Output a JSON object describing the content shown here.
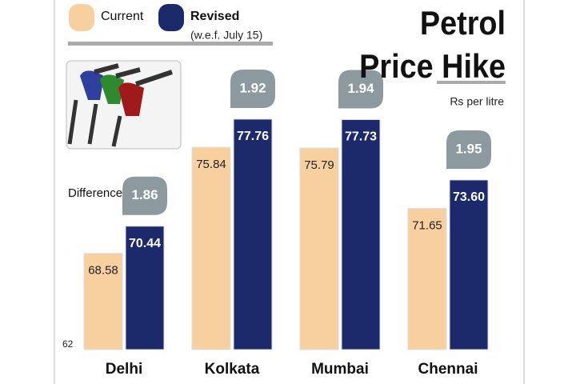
{
  "chart_data": {
    "type": "bar",
    "title": "Petrol Price Hike",
    "unit_label": "Rs per litre",
    "legend_note": "(w.e.f. July 15)",
    "categories": [
      "Delhi",
      "Kolkata",
      "Mumbai",
      "Chennai"
    ],
    "series": [
      {
        "name": "Current",
        "color": "#f8cf9f",
        "values": [
          68.58,
          75.84,
          75.79,
          71.65
        ],
        "value_labels": [
          "68.58",
          "75.84",
          "75.79",
          "71.65"
        ]
      },
      {
        "name": "Revised",
        "color": "#1c2a6c",
        "values": [
          70.44,
          77.76,
          77.73,
          73.6
        ],
        "value_labels": [
          "70.44",
          "77.76",
          "77.73",
          "73.60"
        ]
      }
    ],
    "difference": {
      "label": "Difference",
      "values": [
        1.86,
        1.92,
        1.94,
        1.95
      ],
      "color": "#8c9aa0"
    },
    "ylim": [
      62,
      80
    ],
    "yticks": [
      62
    ],
    "grid": false
  }
}
